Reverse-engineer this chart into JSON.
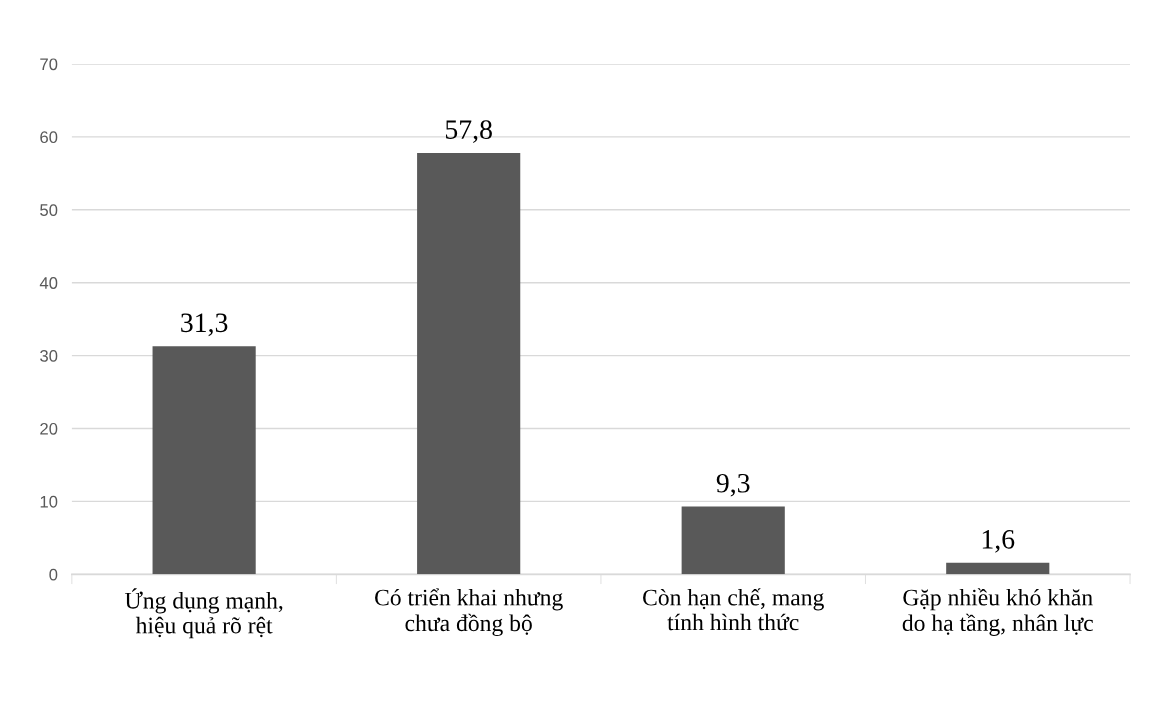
{
  "chart_data": {
    "type": "bar",
    "categories": [
      "Ứng dụng mạnh,\nhiệu quả rõ rệt",
      "Có triển khai nhưng\nchưa đồng bộ",
      "Còn hạn chế, mang\ntính hình thức",
      "Gặp nhiều khó khăn\ndo hạ tầng, nhân lực"
    ],
    "values": [
      31.3,
      57.8,
      9.3,
      1.6
    ],
    "value_labels": [
      "31,3",
      "57,8",
      "9,3",
      "1,6"
    ],
    "color": "#595959",
    "ylim": [
      0,
      70
    ],
    "yticks": [
      0,
      10,
      20,
      30,
      40,
      50,
      60,
      70
    ],
    "grid": "y",
    "legend": false
  }
}
